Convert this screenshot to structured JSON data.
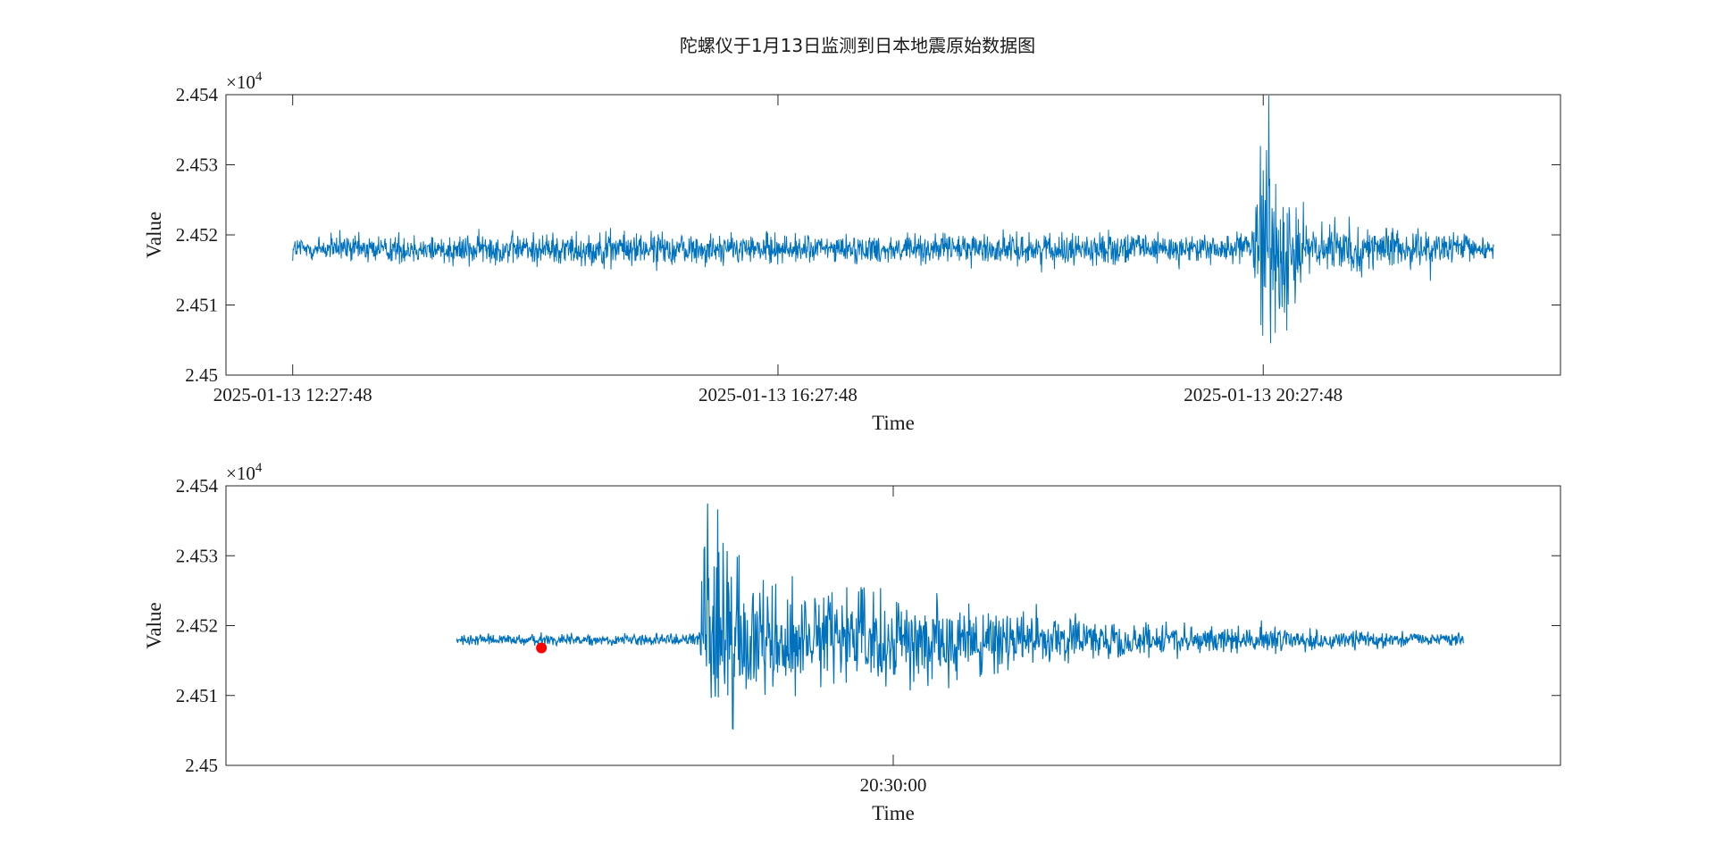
{
  "figure": {
    "title": "陀螺仪于1月13日监测到日本地震原始数据图"
  },
  "colors": {
    "series": "#0072BD",
    "marker": "#FF0000",
    "axis": "#262626"
  },
  "chart_data": [
    {
      "type": "line",
      "title": "陀螺仪于1月13日监测到日本地震原始数据图",
      "xlabel": "Time",
      "ylabel": "Value",
      "y_exponent_label": "×10",
      "y_exponent_power": "4",
      "x_ticks": [
        "2025-01-13 12:27:48",
        "2025-01-13 16:27:48",
        "2025-01-13 20:27:48"
      ],
      "x_tick_hours": [
        0,
        4,
        8
      ],
      "x_range_hours": [
        -0.55,
        10.45
      ],
      "x_data_range_hours": [
        0,
        9.9
      ],
      "y_ticks": [
        "2.45",
        "2.451",
        "2.452",
        "2.453",
        "2.454"
      ],
      "y_tick_values": [
        24500,
        24510,
        24520,
        24530,
        24540
      ],
      "ylim": [
        24500,
        24540
      ],
      "baseline": 24518,
      "grid": false,
      "series": [
        {
          "values_note_free": true,
          "envelope": [
            {
              "x": 0.0,
              "amp": 2.8
            },
            {
              "x": 2.6,
              "amp": 3.5
            },
            {
              "x": 4.4,
              "amp": 2.8
            },
            {
              "x": 5.9,
              "amp": 3.2
            },
            {
              "x": 7.9,
              "amp": 3.0
            },
            {
              "x": 8.0,
              "amp": 24.0
            },
            {
              "x": 8.15,
              "amp": 16.0
            },
            {
              "x": 8.4,
              "amp": 5.0
            },
            {
              "x": 9.9,
              "amp": 2.6
            }
          ]
        }
      ]
    },
    {
      "type": "line",
      "xlabel": "Time",
      "ylabel": "Value",
      "y_exponent_label": "×10",
      "y_exponent_power": "4",
      "x_ticks": [
        "20:30:00"
      ],
      "x_tick_minutes": [
        0
      ],
      "x_range_minutes": [
        -5.5,
        5.5
      ],
      "x_data_range_minutes": [
        -3.6,
        4.7
      ],
      "y_ticks": [
        "2.45",
        "2.451",
        "2.452",
        "2.453",
        "2.454"
      ],
      "y_tick_values": [
        24500,
        24510,
        24520,
        24530,
        24540
      ],
      "ylim": [
        24500,
        24540
      ],
      "baseline": 24518,
      "grid": false,
      "marker_point": {
        "x": -2.9,
        "y": 24516.8
      },
      "series": [
        {
          "envelope": [
            {
              "x": -3.6,
              "amp": 1.2
            },
            {
              "x": -1.6,
              "amp": 1.2
            },
            {
              "x": -1.55,
              "amp": 26.0
            },
            {
              "x": -1.1,
              "amp": 12.0
            },
            {
              "x": -0.5,
              "amp": 10.0
            },
            {
              "x": 0.5,
              "amp": 8.0
            },
            {
              "x": 1.5,
              "amp": 4.0
            },
            {
              "x": 3.0,
              "amp": 2.5
            },
            {
              "x": 4.7,
              "amp": 1.2
            }
          ]
        }
      ]
    }
  ]
}
